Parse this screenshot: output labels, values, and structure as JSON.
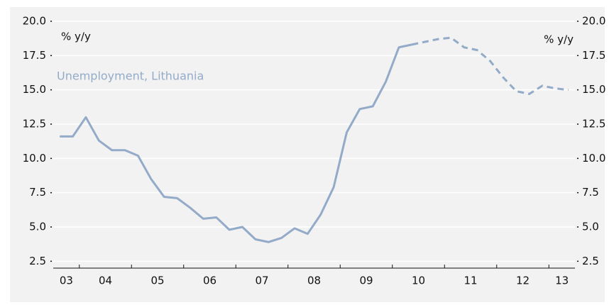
{
  "chart_data": {
    "type": "line",
    "y_axis_label": "% y/y",
    "y2_axis_label": "% y/y",
    "categories": [
      null,
      "03",
      null,
      null,
      "04",
      null,
      null,
      null,
      "05",
      null,
      null,
      null,
      "06",
      null,
      null,
      null,
      "07",
      null,
      null,
      null,
      "08",
      null,
      null,
      null,
      "09",
      null,
      null,
      null,
      "10",
      null,
      null,
      null,
      "11",
      null,
      null,
      null,
      "12",
      null,
      null,
      "13"
    ],
    "series": [
      {
        "name": "Unemployment, Lithuania",
        "color": "#93abc8",
        "values": [
          11.6,
          11.6,
          13.0,
          11.3,
          10.6,
          10.6,
          10.2,
          8.5,
          7.2,
          7.1,
          6.4,
          5.6,
          5.7,
          4.8,
          5.0,
          4.1,
          3.9,
          4.2,
          4.9,
          4.5,
          5.9,
          7.9,
          11.9,
          13.6,
          13.8,
          15.6,
          18.1,
          18.3,
          18.5,
          18.7,
          18.8,
          18.1,
          17.9,
          17.1,
          15.9,
          14.9,
          14.7,
          15.3,
          15.1,
          15.0
        ],
        "dashed_from_index": 27
      }
    ],
    "ylim": [
      2,
      20
    ],
    "yticks": [
      2.5,
      {
        "value": 5,
        "label": "5.0"
      },
      7.5,
      {
        "value": 10,
        "label": "10.0"
      },
      12.5,
      {
        "value": 15,
        "label": "15.0"
      },
      17.5,
      {
        "value": 20,
        "label": "20.0"
      }
    ],
    "y2lim": [
      2,
      20
    ],
    "y2ticks": [
      2.5,
      {
        "value": 5,
        "label": "5.0"
      },
      7.5,
      {
        "value": 10,
        "label": "10.0"
      },
      12.5,
      {
        "value": 15,
        "label": "15.0"
      },
      17.5,
      {
        "value": 20,
        "label": "20.0"
      }
    ],
    "grid": true
  }
}
